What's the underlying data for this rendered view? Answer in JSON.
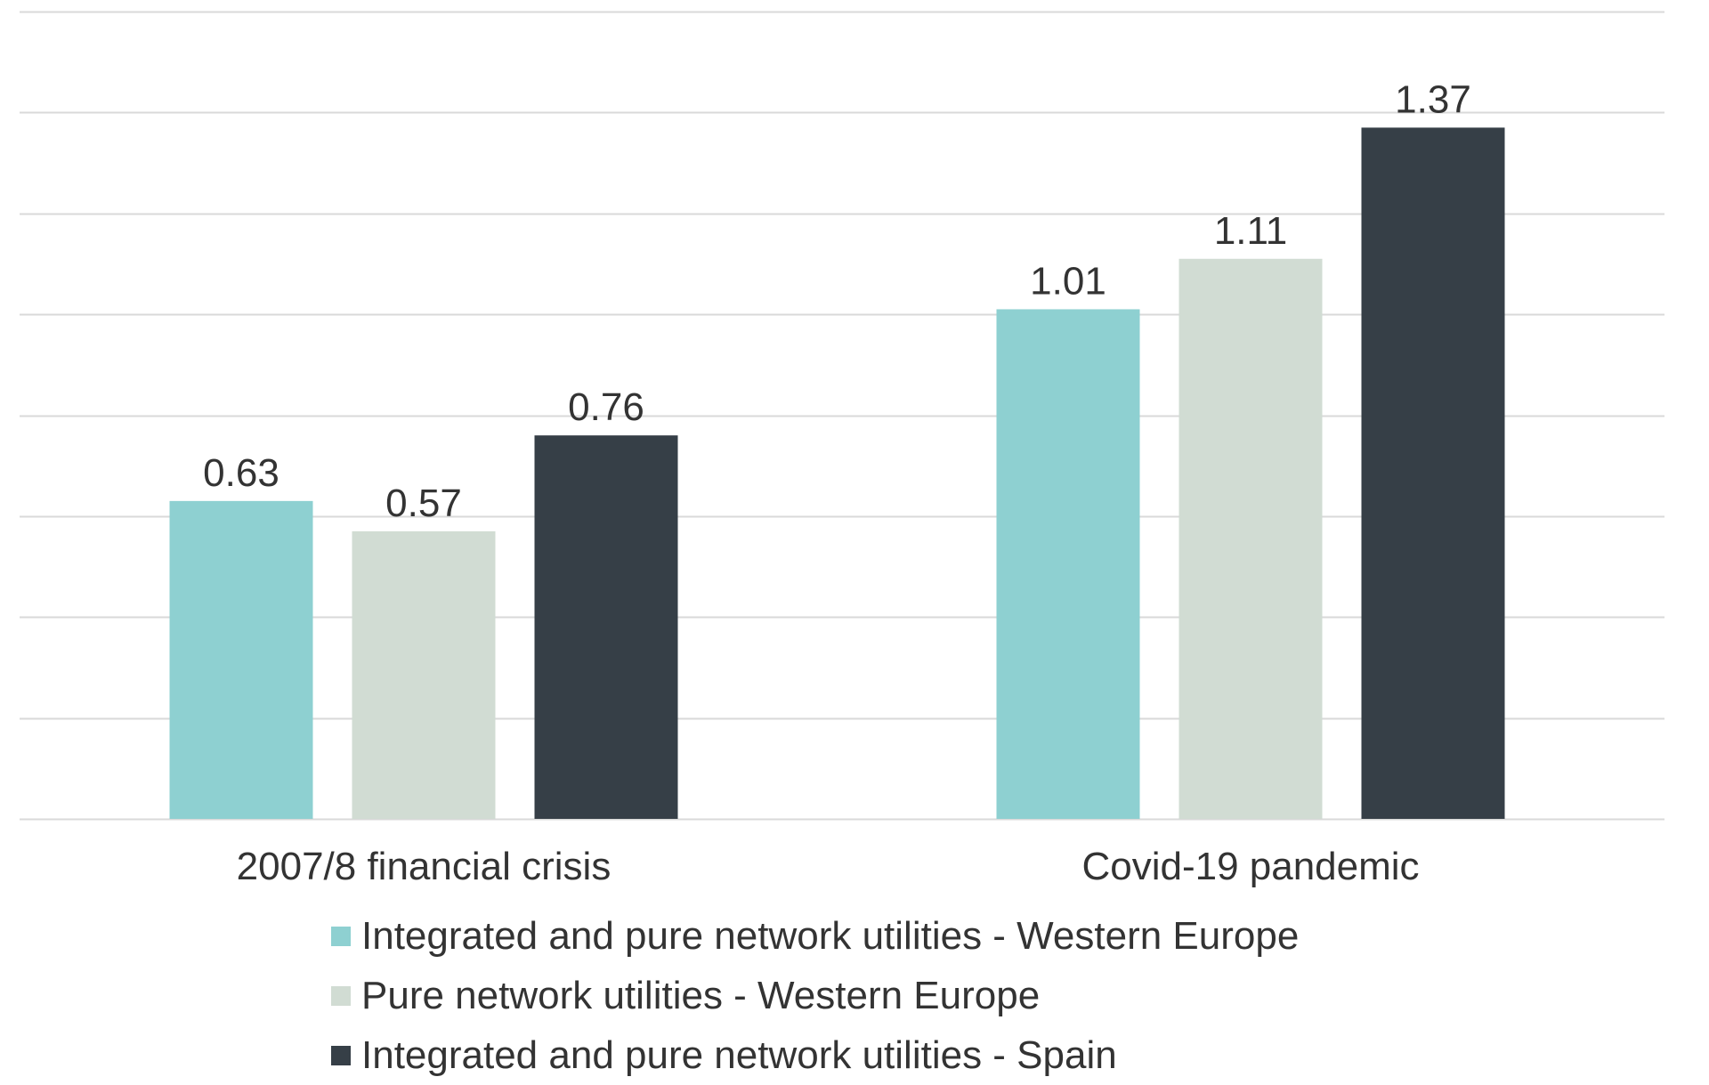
{
  "chart_data": {
    "type": "bar",
    "categories": [
      "2007/8 financial crisis",
      "Covid-19 pandemic"
    ],
    "series": [
      {
        "name": "Integrated and pure network utilities - Western Europe",
        "values": [
          0.63,
          1.01
        ],
        "color": "#8ed0d1"
      },
      {
        "name": "Pure network utilities - Western Europe",
        "values": [
          0.57,
          1.11
        ],
        "color": "#d1dcd3"
      },
      {
        "name": "Integrated and pure network utilities - Spain",
        "values": [
          0.76,
          1.37
        ],
        "color": "#363f47"
      }
    ],
    "ylim": [
      0,
      1.6
    ],
    "grid": true,
    "gridline_color": "#d9d9d9",
    "label_color": "#333333",
    "legend_position": "bottom"
  }
}
